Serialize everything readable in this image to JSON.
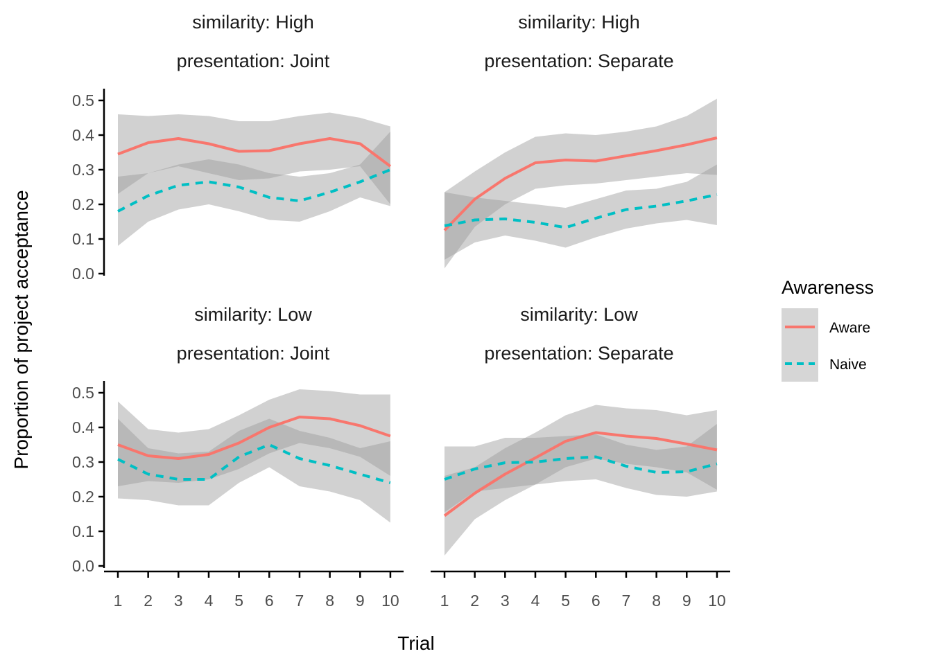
{
  "chart_data": {
    "type": "line",
    "x_label": "Trial",
    "y_label": "Proportion of project acceptance",
    "x_ticks": [
      1,
      2,
      3,
      4,
      5,
      6,
      7,
      8,
      9,
      10
    ],
    "y_ticks": [
      "0.0",
      "0.1",
      "0.2",
      "0.3",
      "0.4",
      "0.5"
    ],
    "xlim": [
      0.97,
      10.0
    ],
    "ylim": [
      -0.01,
      0.54
    ],
    "legend": {
      "title": "Awareness",
      "position": "right",
      "items": [
        {
          "label": "Aware",
          "color": "#F8766D",
          "linestyle": "solid"
        },
        {
          "label": "Naive",
          "color": "#00BFC4",
          "linestyle": "dashed"
        }
      ]
    },
    "ribbon_color": "#999999",
    "panels": [
      {
        "strip_line1": "similarity: High",
        "strip_line2": "presentation: Joint",
        "series": [
          {
            "name": "Aware",
            "x": [
              1,
              2,
              3,
              4,
              5,
              6,
              7,
              8,
              9,
              10
            ],
            "y": [
              0.345,
              0.378,
              0.39,
              0.375,
              0.353,
              0.355,
              0.375,
              0.39,
              0.375,
              0.31
            ],
            "lower": [
              0.23,
              0.29,
              0.31,
              0.29,
              0.27,
              0.275,
              0.295,
              0.3,
              0.31,
              0.2
            ],
            "upper": [
              0.46,
              0.455,
              0.46,
              0.455,
              0.44,
              0.44,
              0.455,
              0.465,
              0.45,
              0.425
            ]
          },
          {
            "name": "Naive",
            "x": [
              1,
              2,
              3,
              4,
              5,
              6,
              7,
              8,
              9,
              10
            ],
            "y": [
              0.18,
              0.225,
              0.255,
              0.265,
              0.25,
              0.22,
              0.21,
              0.235,
              0.265,
              0.3
            ],
            "lower": [
              0.08,
              0.15,
              0.185,
              0.2,
              0.18,
              0.155,
              0.15,
              0.18,
              0.22,
              0.195
            ],
            "upper": [
              0.28,
              0.29,
              0.315,
              0.33,
              0.315,
              0.29,
              0.28,
              0.29,
              0.315,
              0.41
            ]
          }
        ]
      },
      {
        "strip_line1": "similarity: High",
        "strip_line2": "presentation: Separate",
        "series": [
          {
            "name": "Aware",
            "x": [
              1,
              2,
              3,
              4,
              5,
              6,
              7,
              8,
              9,
              10
            ],
            "y": [
              0.125,
              0.215,
              0.275,
              0.32,
              0.328,
              0.325,
              0.34,
              0.355,
              0.372,
              0.392
            ],
            "lower": [
              0.015,
              0.135,
              0.2,
              0.245,
              0.255,
              0.26,
              0.27,
              0.28,
              0.29,
              0.285
            ],
            "upper": [
              0.235,
              0.295,
              0.35,
              0.395,
              0.405,
              0.4,
              0.41,
              0.425,
              0.455,
              0.505
            ]
          },
          {
            "name": "Naive",
            "x": [
              1,
              2,
              3,
              4,
              5,
              6,
              7,
              8,
              9,
              10
            ],
            "y": [
              0.138,
              0.155,
              0.158,
              0.148,
              0.133,
              0.16,
              0.185,
              0.195,
              0.21,
              0.228
            ],
            "lower": [
              0.04,
              0.09,
              0.11,
              0.095,
              0.075,
              0.105,
              0.13,
              0.145,
              0.155,
              0.14
            ],
            "upper": [
              0.235,
              0.22,
              0.21,
              0.2,
              0.19,
              0.215,
              0.24,
              0.245,
              0.265,
              0.315
            ]
          }
        ]
      },
      {
        "strip_line1": "similarity: Low",
        "strip_line2": "presentation: Joint",
        "series": [
          {
            "name": "Aware",
            "x": [
              1,
              2,
              3,
              4,
              5,
              6,
              7,
              8,
              9,
              10
            ],
            "y": [
              0.35,
              0.318,
              0.31,
              0.322,
              0.355,
              0.4,
              0.43,
              0.425,
              0.405,
              0.375
            ],
            "lower": [
              0.23,
              0.245,
              0.24,
              0.25,
              0.28,
              0.325,
              0.355,
              0.34,
              0.315,
              0.26
            ],
            "upper": [
              0.475,
              0.395,
              0.385,
              0.395,
              0.435,
              0.48,
              0.51,
              0.505,
              0.495,
              0.495
            ]
          },
          {
            "name": "Naive",
            "x": [
              1,
              2,
              3,
              4,
              5,
              6,
              7,
              8,
              9,
              10
            ],
            "y": [
              0.308,
              0.265,
              0.25,
              0.25,
              0.315,
              0.35,
              0.31,
              0.29,
              0.265,
              0.24
            ],
            "lower": [
              0.195,
              0.19,
              0.175,
              0.175,
              0.24,
              0.285,
              0.23,
              0.215,
              0.19,
              0.125
            ],
            "upper": [
              0.425,
              0.34,
              0.325,
              0.33,
              0.39,
              0.425,
              0.39,
              0.37,
              0.34,
              0.36
            ]
          }
        ]
      },
      {
        "strip_line1": "similarity: Low",
        "strip_line2": "presentation: Separate",
        "series": [
          {
            "name": "Aware",
            "x": [
              1,
              2,
              3,
              4,
              5,
              6,
              7,
              8,
              9,
              10
            ],
            "y": [
              0.145,
              0.21,
              0.265,
              0.312,
              0.36,
              0.385,
              0.375,
              0.368,
              0.352,
              0.335
            ],
            "lower": [
              0.03,
              0.135,
              0.19,
              0.235,
              0.285,
              0.31,
              0.295,
              0.285,
              0.27,
              0.22
            ],
            "upper": [
              0.26,
              0.285,
              0.34,
              0.385,
              0.435,
              0.465,
              0.455,
              0.45,
              0.435,
              0.45
            ]
          },
          {
            "name": "Naive",
            "x": [
              1,
              2,
              3,
              4,
              5,
              6,
              7,
              8,
              9,
              10
            ],
            "y": [
              0.25,
              0.28,
              0.298,
              0.3,
              0.31,
              0.315,
              0.288,
              0.27,
              0.272,
              0.295
            ],
            "lower": [
              0.155,
              0.215,
              0.225,
              0.235,
              0.245,
              0.25,
              0.225,
              0.205,
              0.2,
              0.215
            ],
            "upper": [
              0.345,
              0.345,
              0.37,
              0.37,
              0.375,
              0.38,
              0.35,
              0.335,
              0.345,
              0.41
            ]
          }
        ]
      }
    ]
  }
}
